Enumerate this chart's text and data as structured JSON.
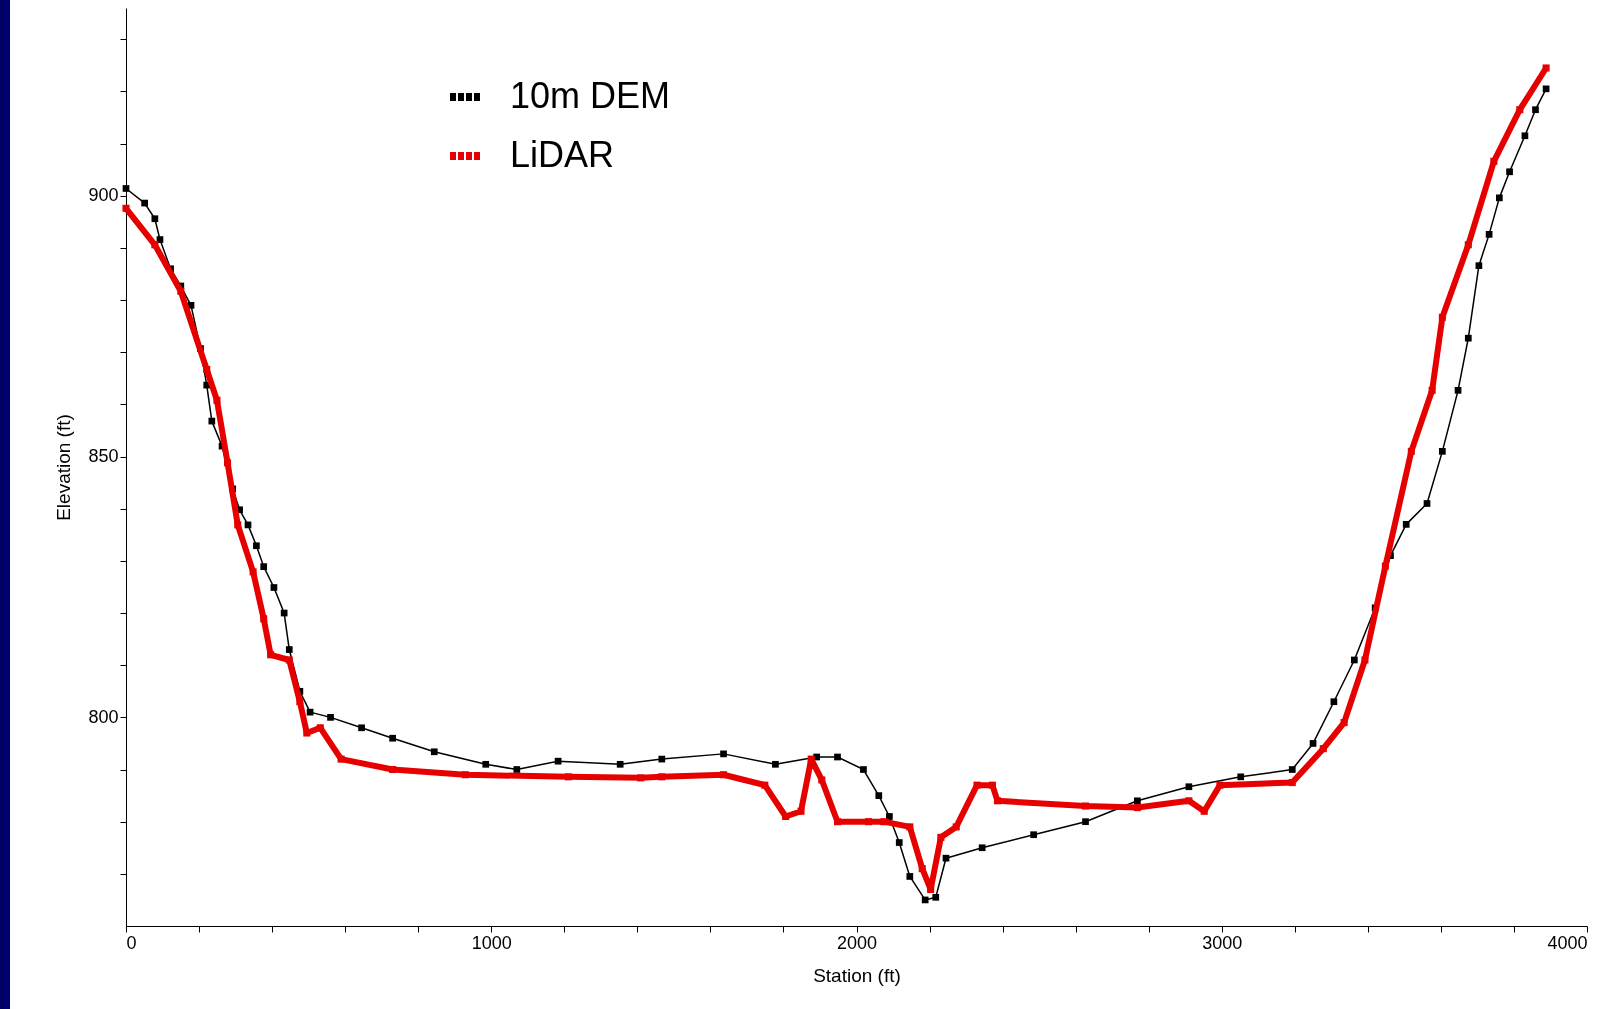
{
  "chart_data": {
    "type": "line",
    "xlabel": "Station (ft)",
    "ylabel": "Elevation (ft)",
    "xlim": [
      0,
      4000
    ],
    "ylim": [
      760,
      936
    ],
    "xticks": [
      0,
      {
        "value": 200,
        "label": null
      },
      {
        "value": 400,
        "label": null
      },
      {
        "value": 600,
        "label": null
      },
      {
        "value": 800,
        "label": null
      },
      1000,
      {
        "value": 1200,
        "label": null
      },
      {
        "value": 1400,
        "label": null
      },
      {
        "value": 1600,
        "label": null
      },
      {
        "value": 1800,
        "label": null
      },
      2000,
      {
        "value": 2200,
        "label": null
      },
      {
        "value": 2400,
        "label": null
      },
      {
        "value": 2600,
        "label": null
      },
      {
        "value": 2800,
        "label": null
      },
      3000,
      {
        "value": 3200,
        "label": null
      },
      {
        "value": 3400,
        "label": null
      },
      {
        "value": 3600,
        "label": null
      },
      {
        "value": 3800,
        "label": null
      },
      4000
    ],
    "yticks": [
      {
        "value": 770,
        "label": null
      },
      {
        "value": 780,
        "label": null
      },
      {
        "value": 790,
        "label": null
      },
      800,
      {
        "value": 810,
        "label": null
      },
      {
        "value": 820,
        "label": null
      },
      {
        "value": 830,
        "label": null
      },
      {
        "value": 840,
        "label": null
      },
      850,
      {
        "value": 860,
        "label": null
      },
      {
        "value": 870,
        "label": null
      },
      {
        "value": 880,
        "label": null
      },
      {
        "value": 890,
        "label": null
      },
      900,
      {
        "value": 910,
        "label": null
      },
      {
        "value": 920,
        "label": null
      },
      {
        "value": 930,
        "label": null
      }
    ],
    "grid": false,
    "legend": "top left",
    "marker": "square",
    "line_style": "solid",
    "series": [
      {
        "name": "10m DEM",
        "color": "#000000",
        "x": [
          0,
          51,
          79,
          93,
          122,
          150,
          178,
          204,
          221,
          235,
          263,
          292,
          311,
          334,
          357,
          377,
          405,
          433,
          447,
          476,
          504,
          560,
          645,
          730,
          844,
          985,
          1070,
          1183,
          1353,
          1467,
          1636,
          1778,
          1891,
          1948,
          2019,
          2061,
          2090,
          2117,
          2146,
          2188,
          2217,
          2245,
          2344,
          2485,
          2627,
          2769,
          2910,
          3052,
          3193,
          3250,
          3307,
          3363,
          3420,
          3462,
          3505,
          3562,
          3604,
          3647,
          3675,
          3704,
          3732,
          3760,
          3788,
          3830,
          3859,
          3888
        ],
        "values": [
          901.4,
          898.6,
          895.6,
          891.6,
          886,
          882.7,
          879,
          870.7,
          863.7,
          856.8,
          852,
          843.8,
          839.8,
          836.9,
          832.9,
          828.9,
          824.9,
          820,
          813,
          805,
          801,
          800,
          798,
          796,
          793.4,
          791,
          790,
          791.6,
          791,
          792,
          793,
          791,
          792.4,
          792.4,
          790,
          785,
          781,
          776,
          769.5,
          765,
          765.5,
          773,
          775,
          777.5,
          780,
          784,
          786.7,
          788.6,
          790,
          795,
          803,
          811,
          821,
          831,
          837,
          841,
          851,
          862.7,
          872.7,
          886.6,
          892.6,
          899.6,
          904.6,
          911.5,
          916.5,
          920.5
        ]
      },
      {
        "name": "LiDAR",
        "color": "#e60000",
        "x": [
          0,
          79,
          150,
          221,
          249,
          278,
          306,
          348,
          377,
          396,
          447,
          476,
          495,
          532,
          589,
          730,
          929,
          1211,
          1409,
          1467,
          1636,
          1749,
          1806,
          1848,
          1876,
          1905,
          1948,
          2033,
          2075,
          2146,
          2180,
          2203,
          2231,
          2273,
          2330,
          2372,
          2386,
          2627,
          2769,
          2910,
          2952,
          2995,
          3193,
          3278,
          3335,
          3392,
          3448,
          3519,
          3576,
          3604,
          3675,
          3745,
          3816,
          3888
        ],
        "values": [
          897.6,
          890.6,
          881.7,
          866.7,
          860.8,
          848.8,
          836.9,
          827.9,
          818.9,
          812,
          811,
          803,
          797,
          798,
          792,
          790,
          789,
          788.6,
          788.4,
          788.6,
          789,
          787,
          781,
          782,
          792,
          788,
          780,
          780,
          780,
          779,
          771,
          767,
          777,
          779,
          787,
          787,
          784,
          783,
          782.7,
          784,
          782,
          787,
          787.5,
          794,
          799,
          811,
          829,
          851,
          862.7,
          876.7,
          890.6,
          906.6,
          916.5,
          924.5
        ]
      }
    ]
  }
}
